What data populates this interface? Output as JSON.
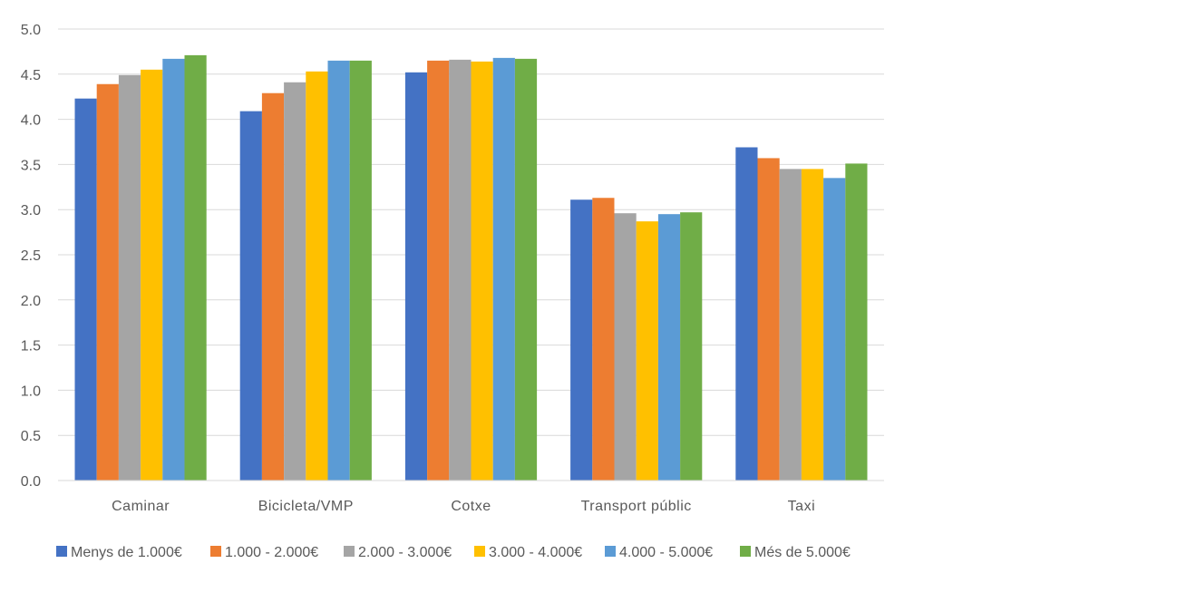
{
  "chart_data": {
    "type": "bar",
    "title": "",
    "xlabel": "",
    "ylabel": "",
    "ylim": [
      0,
      5
    ],
    "yticks": [
      "0.0",
      "0.5",
      "1.0",
      "1.5",
      "2.0",
      "2.5",
      "3.0",
      "3.5",
      "4.0",
      "4.5",
      "5.0"
    ],
    "grid": true,
    "legend_position": "bottom",
    "categories": [
      "Caminar",
      "Bicicleta/VMP",
      "Cotxe",
      "Transport públic",
      "Taxi"
    ],
    "series": [
      {
        "name": "Menys de 1.000€",
        "color": "#4472C4",
        "values": [
          4.23,
          4.09,
          4.52,
          3.11,
          3.69
        ]
      },
      {
        "name": "1.000 - 2.000€",
        "color": "#ED7D31",
        "values": [
          4.39,
          4.29,
          4.65,
          3.13,
          3.57
        ]
      },
      {
        "name": "2.000 - 3.000€",
        "color": "#A5A5A5",
        "values": [
          4.49,
          4.41,
          4.66,
          2.96,
          3.45
        ]
      },
      {
        "name": "3.000 - 4.000€",
        "color": "#FFC000",
        "values": [
          4.55,
          4.53,
          4.64,
          2.87,
          3.45
        ]
      },
      {
        "name": "4.000 - 5.000€",
        "color": "#5B9BD5",
        "values": [
          4.67,
          4.65,
          4.68,
          2.95,
          3.35
        ]
      },
      {
        "name": "Més de 5.000€",
        "color": "#70AD47",
        "values": [
          4.71,
          4.65,
          4.67,
          2.97,
          3.51
        ]
      }
    ]
  }
}
